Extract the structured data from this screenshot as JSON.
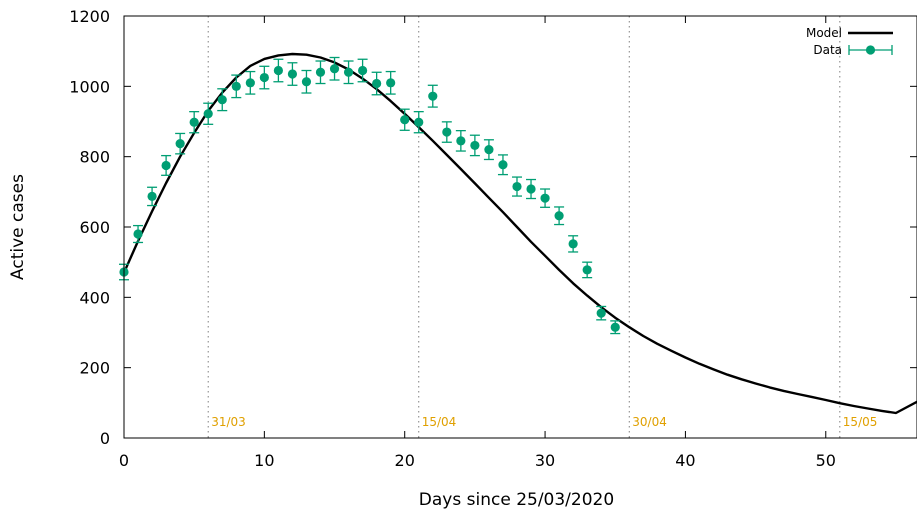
{
  "chart_data": {
    "type": "line",
    "title": "",
    "xlabel": "Days since 25/03/2020",
    "ylabel": "Active cases",
    "xlim": [
      0,
      56.5
    ],
    "ylim": [
      0,
      1200
    ],
    "xticks": [
      0,
      10,
      20,
      30,
      40,
      50
    ],
    "yticks": [
      0,
      200,
      400,
      600,
      800,
      1000,
      1200
    ],
    "grid": false,
    "legend_position": "top-right",
    "colors": {
      "model": "#000000",
      "data": "#009e73",
      "date_markers": "#e69f00",
      "axis": "#000000"
    },
    "date_markers": [
      {
        "x": 6,
        "label": "31/03"
      },
      {
        "x": 21,
        "label": "15/04"
      },
      {
        "x": 36,
        "label": "30/04"
      },
      {
        "x": 51,
        "label": "15/05"
      }
    ],
    "series": [
      {
        "name": "Model",
        "style": "line",
        "x": [
          0,
          1,
          2,
          3,
          4,
          5,
          6,
          7,
          8,
          9,
          10,
          11,
          12,
          13,
          14,
          15,
          16,
          17,
          18,
          19,
          20,
          21,
          22,
          23,
          24,
          25,
          26,
          27,
          28,
          29,
          30,
          31,
          32,
          33,
          34,
          35,
          36,
          37,
          38,
          39,
          40,
          41,
          42,
          43,
          44,
          45,
          46,
          47,
          48,
          49,
          50,
          51,
          52,
          53,
          54,
          55,
          56.5
        ],
        "values": [
          470,
          560,
          645,
          725,
          800,
          868,
          930,
          982,
          1025,
          1058,
          1078,
          1088,
          1092,
          1090,
          1082,
          1068,
          1048,
          1022,
          992,
          958,
          922,
          884,
          845,
          805,
          765,
          724,
          683,
          642,
          600,
          558,
          518,
          478,
          440,
          405,
          372,
          342,
          315,
          290,
          268,
          248,
          229,
          211,
          195,
          180,
          167,
          155,
          144,
          134,
          125,
          117,
          108,
          99,
          91,
          84,
          77,
          71,
          103
        ]
      },
      {
        "name": "Data",
        "style": "points-errorbars",
        "x": [
          0,
          1,
          2,
          3,
          4,
          5,
          6,
          7,
          8,
          9,
          10,
          11,
          12,
          13,
          14,
          15,
          16,
          17,
          18,
          19,
          20,
          21,
          22,
          23,
          24,
          25,
          26,
          27,
          28,
          29,
          30,
          31,
          32,
          33,
          34,
          35
        ],
        "values": [
          472,
          580,
          687,
          775,
          837,
          898,
          922,
          962,
          1000,
          1010,
          1025,
          1045,
          1035,
          1013,
          1040,
          1050,
          1040,
          1045,
          1008,
          1010,
          905,
          898,
          972,
          870,
          845,
          832,
          820,
          777,
          715,
          708,
          682,
          632,
          552,
          478,
          355,
          315
        ],
        "errors": [
          22,
          24,
          26,
          28,
          29,
          30,
          30,
          31,
          32,
          32,
          32,
          32,
          32,
          32,
          32,
          32,
          32,
          32,
          32,
          32,
          30,
          30,
          31,
          29,
          29,
          29,
          28,
          28,
          27,
          27,
          26,
          25,
          23,
          22,
          19,
          18
        ]
      }
    ]
  }
}
